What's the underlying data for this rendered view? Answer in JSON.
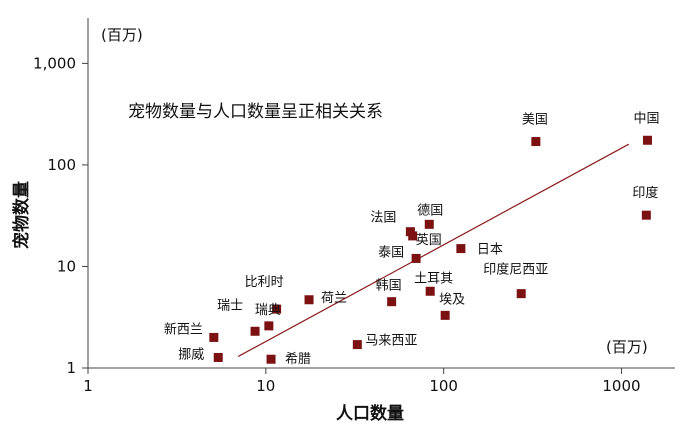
{
  "chart_data": {
    "type": "scatter",
    "title": "",
    "annotation": "宠物数量与人口数量呈正相关关系",
    "xlabel": "人口数量",
    "ylabel": "宠物数量",
    "x_unit": "(百万)",
    "y_unit": "(百万)",
    "x_scale": "log",
    "y_scale": "log",
    "xlim": [
      1,
      2000
    ],
    "ylim": [
      1,
      2800
    ],
    "x_ticks": [
      {
        "value": 1,
        "label": "1"
      },
      {
        "value": 10,
        "label": "10"
      },
      {
        "value": 100,
        "label": "100"
      },
      {
        "value": 1000,
        "label": "1000"
      }
    ],
    "y_ticks": [
      {
        "value": 1,
        "label": "1"
      },
      {
        "value": 10,
        "label": "10"
      },
      {
        "value": 100,
        "label": "100"
      },
      {
        "value": 1000,
        "label": "1,000"
      }
    ],
    "marker_color": "#7b1111",
    "trendline_color": "#8b1a1a",
    "trendline": {
      "x": [
        7,
        1100
      ],
      "y": [
        1.3,
        160
      ]
    },
    "points": [
      {
        "label": "美国",
        "x": 330,
        "y": 170
      },
      {
        "label": "中国",
        "x": 1400,
        "y": 175
      },
      {
        "label": "印度",
        "x": 1380,
        "y": 32
      },
      {
        "label": "德国",
        "x": 83,
        "y": 26
      },
      {
        "label": "法国",
        "x": 65,
        "y": 22
      },
      {
        "label": "英国",
        "x": 67,
        "y": 20
      },
      {
        "label": "泰国",
        "x": 70,
        "y": 12
      },
      {
        "label": "日本",
        "x": 125,
        "y": 15
      },
      {
        "label": "土耳其",
        "x": 84,
        "y": 5.7
      },
      {
        "label": "韩国",
        "x": 51,
        "y": 4.5
      },
      {
        "label": "埃及",
        "x": 102,
        "y": 3.3
      },
      {
        "label": "印度尼西亚",
        "x": 273,
        "y": 5.4
      },
      {
        "label": "比利时",
        "x": 11.5,
        "y": 3.8
      },
      {
        "label": "荷兰",
        "x": 17.5,
        "y": 4.7
      },
      {
        "label": "瑞典",
        "x": 10.4,
        "y": 2.6
      },
      {
        "label": "瑞士",
        "x": 8.7,
        "y": 2.3
      },
      {
        "label": "新西兰",
        "x": 5.1,
        "y": 2.0
      },
      {
        "label": "挪威",
        "x": 5.4,
        "y": 1.27
      },
      {
        "label": "希腊",
        "x": 10.7,
        "y": 1.22
      },
      {
        "label": "马来西亚",
        "x": 32.7,
        "y": 1.7
      }
    ]
  }
}
